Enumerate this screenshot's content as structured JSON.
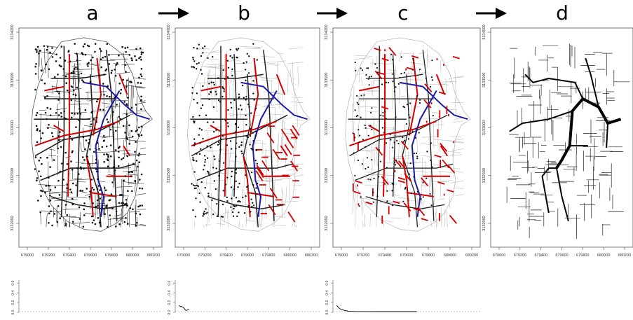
{
  "panels": [
    {
      "letter": "a",
      "road_style": "full",
      "has_mini_plot": true,
      "mini_series": []
    },
    {
      "letter": "b",
      "road_style": "thinned",
      "has_mini_plot": true,
      "mini_series": [
        [
          1,
          0.62
        ],
        [
          2,
          0.58
        ],
        [
          3,
          0.55
        ],
        [
          4,
          0.52
        ],
        [
          5,
          0.5
        ],
        [
          6,
          0.46
        ],
        [
          7,
          0.42
        ],
        [
          8,
          0.3
        ],
        [
          9,
          0.18
        ],
        [
          10,
          0.12
        ],
        [
          11,
          0.14
        ],
        [
          12,
          0.16
        ],
        [
          13,
          0.2
        ],
        [
          14,
          0.2
        ]
      ]
    },
    {
      "letter": "c",
      "road_style": "sparse",
      "has_mini_plot": true,
      "mini_series": [
        [
          1,
          0.64
        ],
        [
          2,
          0.56
        ],
        [
          3,
          0.45
        ],
        [
          4,
          0.38
        ],
        [
          5,
          0.3
        ],
        [
          6,
          0.25
        ],
        [
          7,
          0.22
        ],
        [
          8,
          0.2
        ],
        [
          9,
          0.18
        ],
        [
          10,
          0.14
        ],
        [
          11,
          0.11
        ],
        [
          12,
          0.1
        ],
        [
          13,
          0.08
        ],
        [
          14,
          0.07
        ],
        [
          15,
          0.05
        ],
        [
          16,
          0.04
        ],
        [
          18,
          0.03
        ],
        [
          20,
          0.02
        ],
        [
          23,
          0.015
        ],
        [
          26,
          0.01
        ],
        [
          30,
          0.008
        ],
        [
          35,
          0.005
        ],
        [
          40,
          0.004
        ],
        [
          46,
          0.003
        ],
        [
          52,
          0.002
        ],
        [
          58,
          0.001
        ],
        [
          64,
          0.001
        ],
        [
          70,
          0.001
        ],
        [
          76,
          0.0
        ],
        [
          82,
          0.0
        ],
        [
          88,
          0.0
        ],
        [
          94,
          0.0
        ],
        [
          100,
          0.0
        ]
      ]
    },
    {
      "letter": "d",
      "road_style": "tree",
      "has_mini_plot": false,
      "mini_series": []
    }
  ],
  "x_ticks": [
    "679000",
    "679200",
    "679400",
    "679600",
    "679800",
    "680000",
    "680200"
  ],
  "y_ticks": [
    "3132000",
    "3132500",
    "3133000",
    "3133500",
    "3134000"
  ],
  "mini_y_ticks": [
    "0.0",
    "0.2",
    "0.4",
    "0.6"
  ],
  "colors": {
    "road_gray": "#bdbdbd",
    "road_black": "#222222",
    "highlight_red": "#d40000",
    "highlight_blue": "#1a1aa8",
    "node": "#111111",
    "frame": "#555555",
    "dashed": "#888888"
  },
  "arrows": [
    "a-to-b",
    "b-to-c",
    "c-to-d"
  ]
}
